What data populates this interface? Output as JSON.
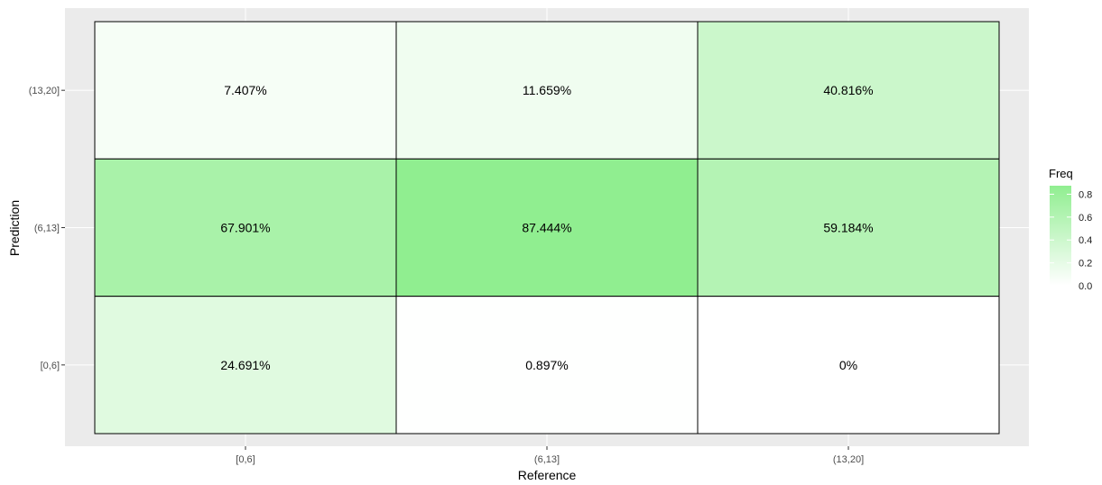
{
  "chart_data": {
    "type": "heatmap",
    "title": "",
    "xlabel": "Reference",
    "ylabel": "Prediction",
    "x_categories": [
      "[0,6]",
      "(6,13]",
      "(13,20]"
    ],
    "y_categories": [
      "[0,6]",
      "(6,13]",
      "(13,20]"
    ],
    "cells": [
      {
        "x": "[0,6]",
        "y": "(13,20]",
        "value": 0.07407,
        "label": "7.407%"
      },
      {
        "x": "(6,13]",
        "y": "(13,20]",
        "value": 0.11659,
        "label": "11.659%"
      },
      {
        "x": "(13,20]",
        "y": "(13,20]",
        "value": 0.40816,
        "label": "40.816%"
      },
      {
        "x": "[0,6]",
        "y": "(6,13]",
        "value": 0.67901,
        "label": "67.901%"
      },
      {
        "x": "(6,13]",
        "y": "(6,13]",
        "value": 0.87444,
        "label": "87.444%"
      },
      {
        "x": "(13,20]",
        "y": "(6,13]",
        "value": 0.59184,
        "label": "59.184%"
      },
      {
        "x": "[0,6]",
        "y": "[0,6]",
        "value": 0.24691,
        "label": "24.691%"
      },
      {
        "x": "(6,13]",
        "y": "[0,6]",
        "value": 0.00897,
        "label": "0.897%"
      },
      {
        "x": "(13,20]",
        "y": "[0,6]",
        "value": 0.0,
        "label": "0%"
      }
    ],
    "legend": {
      "title": "Freq",
      "ticks": [
        "0.0",
        "0.2",
        "0.4",
        "0.6",
        "0.8"
      ],
      "tick_values": [
        0.0,
        0.2,
        0.4,
        0.6,
        0.8
      ],
      "range": [
        0,
        0.87444
      ],
      "placement": "right"
    },
    "colors": {
      "low": "#ffffff",
      "high": "#90ee90",
      "panel_background": "#ebebeb",
      "grid": "#ffffff",
      "cell_border": "#000000"
    }
  }
}
